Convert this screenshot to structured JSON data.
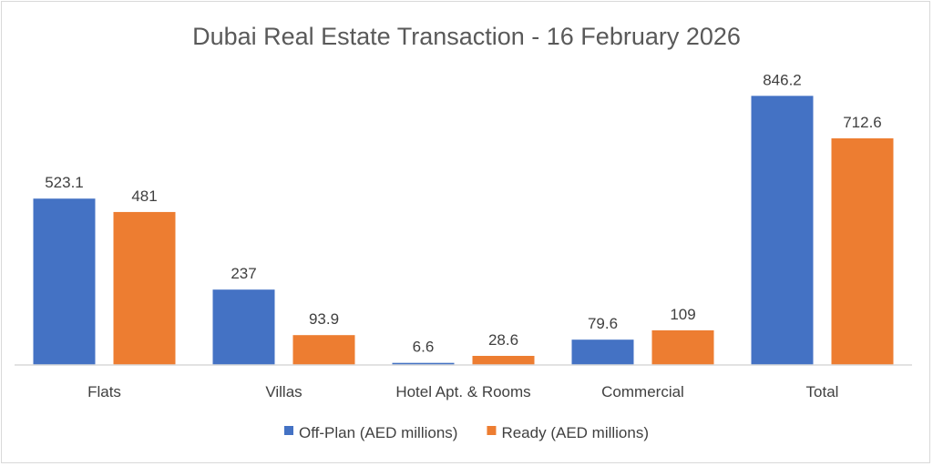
{
  "chart_data": {
    "type": "bar",
    "title": "Dubai Real Estate Transaction - 16 February 2026",
    "categories": [
      "Flats",
      "Villas",
      "Hotel Apt. & Rooms",
      "Commercial",
      "Total"
    ],
    "series": [
      {
        "name": "Off-Plan (AED millions)",
        "color": "#4472C4",
        "values": [
          523.1,
          237,
          6.6,
          79.6,
          846.2
        ],
        "labels": [
          "523.1",
          "237",
          "6.6",
          "79.6",
          "846.2"
        ]
      },
      {
        "name": "Ready (AED millions)",
        "color": "#ED7D31",
        "values": [
          481,
          93.9,
          28.6,
          109,
          712.6
        ],
        "labels": [
          "481",
          "93.9",
          "28.6",
          "109",
          "712.6"
        ]
      }
    ],
    "ylim": [
      0,
      850
    ],
    "grid": false,
    "legend": "bottom"
  }
}
